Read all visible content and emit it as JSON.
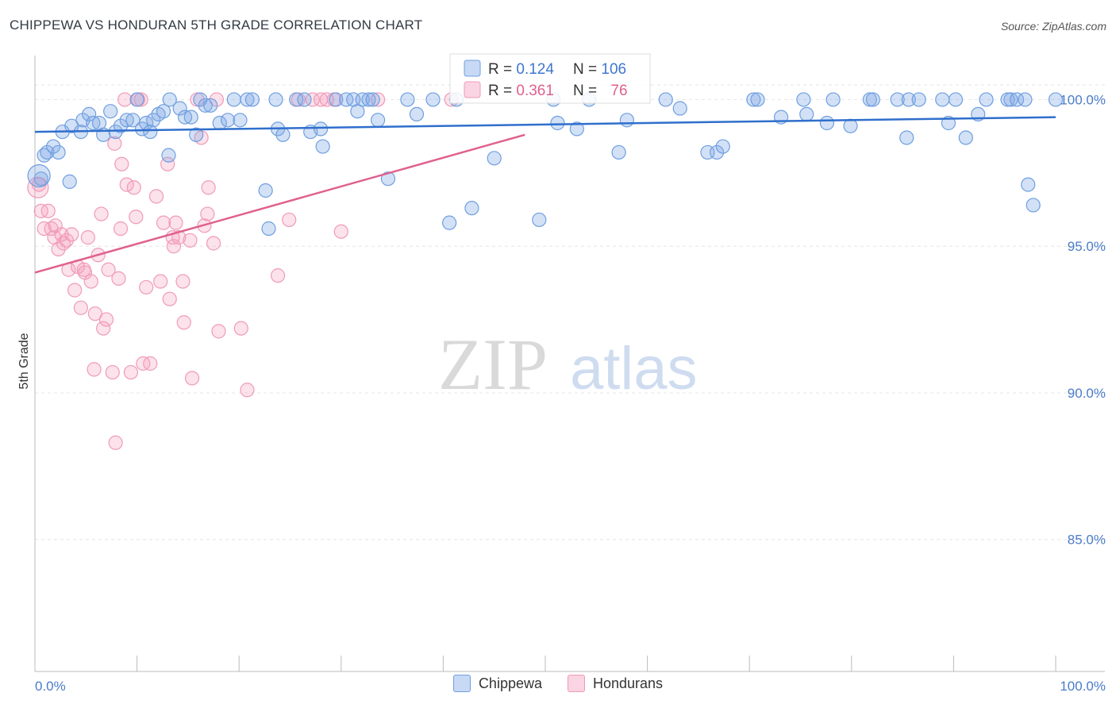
{
  "header": {
    "title": "CHIPPEWA VS HONDURAN 5TH GRADE CORRELATION CHART",
    "source": "Source: ZipAtlas.com"
  },
  "watermark": {
    "zip": "ZIP",
    "atlas": "atlas"
  },
  "colors": {
    "blue": "#6f9fe0",
    "blue_fill": "rgba(130,170,230,0.35)",
    "blue_line": "#2f6fcc",
    "pink": "#f09ab8",
    "pink_fill": "rgba(245,160,190,0.30)",
    "pink_line": "#e0608e",
    "axis_text": "#4a7bc9",
    "grid": "#e4e4e4"
  },
  "legend_top": [
    {
      "r_label": "R = ",
      "r_value": "0.124",
      "n_label": "N = ",
      "n_value": "106"
    },
    {
      "r_label": "R = ",
      "r_value": "0.361",
      "n_label": "N = ",
      "n_value": "76"
    }
  ],
  "chart_data": {
    "type": "scatter",
    "title": "CHIPPEWA VS HONDURAN 5TH GRADE CORRELATION CHART",
    "xlabel": "",
    "ylabel": "5th Grade",
    "xlim": [
      0,
      100
    ],
    "ylim": [
      80.5,
      101.5
    ],
    "x_tick_labels": [
      "0.0%",
      "100.0%"
    ],
    "y_ticks": [
      85.0,
      90.0,
      95.0,
      100.0
    ],
    "y_tick_labels": [
      "85.0%",
      "90.0%",
      "95.0%",
      "100.0%"
    ],
    "grid": true,
    "legend_position": "bottom-center",
    "series": [
      {
        "name": "Chippewa",
        "color": "#6f9fe0",
        "trend": {
          "x": [
            0,
            100
          ],
          "y": [
            98.9,
            99.4
          ]
        },
        "points": [
          [
            0.6,
            97.3
          ],
          [
            0.9,
            98.1
          ],
          [
            1.2,
            98.2
          ],
          [
            1.8,
            98.4
          ],
          [
            2.3,
            98.2
          ],
          [
            2.7,
            98.9
          ],
          [
            3.4,
            97.2
          ],
          [
            3.6,
            99.1
          ],
          [
            4.5,
            98.9
          ],
          [
            4.7,
            99.3
          ],
          [
            5.3,
            99.5
          ],
          [
            5.7,
            99.2
          ],
          [
            6.3,
            99.2
          ],
          [
            6.7,
            98.8
          ],
          [
            7.4,
            99.6
          ],
          [
            7.9,
            98.9
          ],
          [
            8.4,
            99.1
          ],
          [
            9.0,
            99.3
          ],
          [
            9.6,
            99.3
          ],
          [
            10.0,
            100.0
          ],
          [
            10.5,
            99.0
          ],
          [
            10.9,
            99.2
          ],
          [
            11.3,
            98.9
          ],
          [
            11.6,
            99.3
          ],
          [
            12.1,
            99.5
          ],
          [
            12.6,
            99.6
          ],
          [
            13.2,
            100.0
          ],
          [
            13.1,
            98.1
          ],
          [
            14.2,
            99.7
          ],
          [
            14.7,
            99.4
          ],
          [
            15.3,
            99.4
          ],
          [
            15.8,
            98.8
          ],
          [
            16.2,
            100.0
          ],
          [
            16.7,
            99.8
          ],
          [
            17.2,
            99.8
          ],
          [
            18.1,
            99.2
          ],
          [
            18.9,
            99.3
          ],
          [
            19.5,
            100.0
          ],
          [
            20.1,
            99.3
          ],
          [
            20.8,
            100.0
          ],
          [
            21.3,
            100.0
          ],
          [
            22.6,
            96.9
          ],
          [
            22.9,
            95.6
          ],
          [
            23.6,
            100.0
          ],
          [
            23.8,
            99.0
          ],
          [
            24.3,
            98.8
          ],
          [
            25.6,
            100.0
          ],
          [
            26.4,
            100.0
          ],
          [
            27.0,
            98.9
          ],
          [
            28.0,
            99.0
          ],
          [
            28.2,
            98.4
          ],
          [
            29.5,
            100.0
          ],
          [
            30.5,
            100.0
          ],
          [
            31.2,
            100.0
          ],
          [
            31.6,
            99.6
          ],
          [
            32.1,
            100.0
          ],
          [
            32.7,
            100.0
          ],
          [
            33.1,
            100.0
          ],
          [
            33.6,
            99.3
          ],
          [
            34.6,
            97.3
          ],
          [
            36.5,
            100.0
          ],
          [
            37.4,
            99.5
          ],
          [
            39.0,
            100.0
          ],
          [
            40.6,
            95.8
          ],
          [
            41.3,
            100.0
          ],
          [
            42.8,
            96.3
          ],
          [
            45.0,
            98.0
          ],
          [
            49.4,
            95.9
          ],
          [
            50.8,
            100.0
          ],
          [
            51.2,
            99.2
          ],
          [
            53.1,
            99.0
          ],
          [
            54.3,
            100.0
          ],
          [
            57.2,
            98.2
          ],
          [
            58.0,
            99.3
          ],
          [
            61.8,
            100.0
          ],
          [
            63.2,
            99.7
          ],
          [
            65.9,
            98.2
          ],
          [
            66.8,
            98.2
          ],
          [
            67.4,
            98.4
          ],
          [
            70.4,
            100.0
          ],
          [
            70.8,
            100.0
          ],
          [
            73.1,
            99.4
          ],
          [
            75.3,
            100.0
          ],
          [
            75.6,
            99.5
          ],
          [
            77.6,
            99.2
          ],
          [
            78.2,
            100.0
          ],
          [
            79.9,
            99.1
          ],
          [
            81.8,
            100.0
          ],
          [
            82.1,
            100.0
          ],
          [
            84.5,
            100.0
          ],
          [
            85.4,
            98.7
          ],
          [
            85.6,
            100.0
          ],
          [
            86.6,
            100.0
          ],
          [
            88.9,
            100.0
          ],
          [
            89.5,
            99.2
          ],
          [
            90.2,
            100.0
          ],
          [
            91.2,
            98.7
          ],
          [
            92.4,
            99.5
          ],
          [
            93.2,
            100.0
          ],
          [
            95.3,
            100.0
          ],
          [
            95.6,
            100.0
          ],
          [
            96.2,
            100.0
          ],
          [
            97.0,
            100.0
          ],
          [
            97.3,
            97.1
          ],
          [
            97.8,
            96.4
          ],
          [
            100.0,
            100.0
          ]
        ]
      },
      {
        "name": "Hondurans",
        "color": "#f09ab8",
        "trend": {
          "x": [
            0,
            48
          ],
          "y": [
            94.1,
            98.8
          ]
        },
        "points": [
          [
            0.4,
            97.1
          ],
          [
            0.6,
            96.2
          ],
          [
            0.9,
            95.6
          ],
          [
            1.3,
            96.2
          ],
          [
            1.6,
            95.6
          ],
          [
            1.9,
            95.3
          ],
          [
            2.0,
            95.7
          ],
          [
            2.3,
            94.9
          ],
          [
            2.6,
            95.4
          ],
          [
            2.8,
            95.1
          ],
          [
            3.1,
            95.2
          ],
          [
            3.3,
            94.2
          ],
          [
            3.6,
            95.4
          ],
          [
            3.9,
            93.5
          ],
          [
            4.2,
            94.3
          ],
          [
            4.5,
            92.9
          ],
          [
            4.8,
            94.2
          ],
          [
            4.9,
            94.1
          ],
          [
            5.2,
            95.3
          ],
          [
            5.5,
            93.8
          ],
          [
            5.8,
            90.8
          ],
          [
            5.9,
            92.7
          ],
          [
            6.2,
            94.7
          ],
          [
            6.5,
            96.1
          ],
          [
            6.7,
            92.2
          ],
          [
            7.0,
            92.5
          ],
          [
            7.2,
            94.2
          ],
          [
            7.6,
            90.7
          ],
          [
            7.8,
            98.5
          ],
          [
            7.9,
            88.3
          ],
          [
            8.2,
            93.9
          ],
          [
            8.4,
            95.6
          ],
          [
            8.5,
            97.8
          ],
          [
            8.8,
            100.0
          ],
          [
            9.0,
            97.1
          ],
          [
            9.4,
            90.7
          ],
          [
            9.7,
            97.0
          ],
          [
            9.9,
            96.0
          ],
          [
            10.1,
            100.0
          ],
          [
            10.4,
            100.0
          ],
          [
            10.6,
            91.0
          ],
          [
            10.9,
            93.6
          ],
          [
            11.3,
            91.0
          ],
          [
            11.9,
            96.7
          ],
          [
            12.3,
            93.8
          ],
          [
            12.6,
            95.8
          ],
          [
            13.0,
            97.8
          ],
          [
            13.2,
            93.2
          ],
          [
            13.5,
            95.3
          ],
          [
            13.6,
            95.0
          ],
          [
            13.8,
            95.8
          ],
          [
            14.1,
            95.3
          ],
          [
            14.5,
            93.8
          ],
          [
            14.6,
            92.4
          ],
          [
            15.2,
            95.2
          ],
          [
            15.4,
            90.5
          ],
          [
            15.9,
            100.0
          ],
          [
            16.3,
            98.7
          ],
          [
            16.6,
            95.7
          ],
          [
            16.9,
            96.1
          ],
          [
            17.0,
            97.0
          ],
          [
            17.5,
            95.1
          ],
          [
            17.8,
            100.0
          ],
          [
            18.0,
            92.1
          ],
          [
            20.2,
            92.2
          ],
          [
            20.8,
            90.1
          ],
          [
            23.8,
            94.0
          ],
          [
            24.9,
            95.9
          ],
          [
            25.8,
            100.0
          ],
          [
            27.2,
            100.0
          ],
          [
            28.0,
            100.0
          ],
          [
            28.6,
            100.0
          ],
          [
            29.3,
            100.0
          ],
          [
            30.0,
            95.5
          ],
          [
            33.6,
            100.0
          ],
          [
            40.8,
            100.0
          ]
        ]
      }
    ]
  },
  "bottom_legend": [
    {
      "label": "Chippewa"
    },
    {
      "label": "Hondurans"
    }
  ]
}
